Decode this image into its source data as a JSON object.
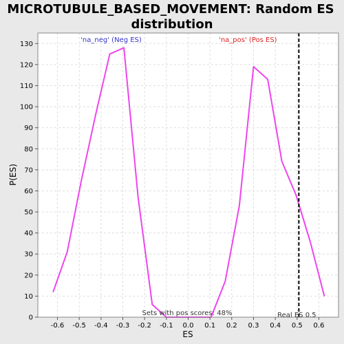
{
  "chart_data": {
    "type": "line",
    "title_line1": "MICROTUBULE_BASED_MOVEMENT: Random ES",
    "title_line2": "distribution",
    "xlabel": "ES",
    "ylabel": "P(ES)",
    "xlim": [
      -0.69,
      0.69
    ],
    "ylim": [
      0,
      135
    ],
    "x_ticks": [
      -0.6,
      -0.5,
      -0.4,
      -0.3,
      -0.2,
      -0.1,
      0.0,
      0.1,
      0.2,
      0.3,
      0.4,
      0.5,
      0.6
    ],
    "x_tick_labels": [
      "-0.6",
      "-0.5",
      "-0.4",
      "-0.3",
      "-0.2",
      "-0.1",
      "0.0",
      "0.1",
      "0.2",
      "0.3",
      "0.4",
      "0.5",
      "0.6"
    ],
    "y_ticks": [
      0,
      10,
      20,
      30,
      40,
      50,
      60,
      70,
      80,
      90,
      100,
      110,
      120,
      130
    ],
    "grid": true,
    "series": [
      {
        "color": "#ee44ee",
        "points": [
          {
            "x": -0.62,
            "y": 12
          },
          {
            "x": -0.555,
            "y": 31
          },
          {
            "x": -0.49,
            "y": 65
          },
          {
            "x": -0.425,
            "y": 96
          },
          {
            "x": -0.36,
            "y": 125
          },
          {
            "x": -0.295,
            "y": 128
          },
          {
            "x": -0.23,
            "y": 57
          },
          {
            "x": -0.165,
            "y": 6
          },
          {
            "x": -0.1,
            "y": 0
          },
          {
            "x": -0.035,
            "y": 0
          },
          {
            "x": 0.03,
            "y": 0
          },
          {
            "x": 0.105,
            "y": 0
          },
          {
            "x": 0.17,
            "y": 17
          },
          {
            "x": 0.235,
            "y": 53
          },
          {
            "x": 0.3,
            "y": 119
          },
          {
            "x": 0.365,
            "y": 113
          },
          {
            "x": 0.43,
            "y": 74
          },
          {
            "x": 0.495,
            "y": 58
          },
          {
            "x": 0.56,
            "y": 36
          },
          {
            "x": 0.625,
            "y": 10
          }
        ]
      }
    ],
    "real_es": {
      "x": 0.508,
      "label": "Real ES 0.5",
      "color": "#000000"
    },
    "annotations": {
      "neg": {
        "text": "'na_neg' (Neg ES)",
        "color": "#3333cc",
        "x": -0.36
      },
      "pos": {
        "text": "'na_pos' (Pos ES)",
        "color": "#dd2222",
        "x": 0.29
      },
      "sets_text": "Sets with pos scores: 48%",
      "sets_color": "#333333"
    }
  }
}
